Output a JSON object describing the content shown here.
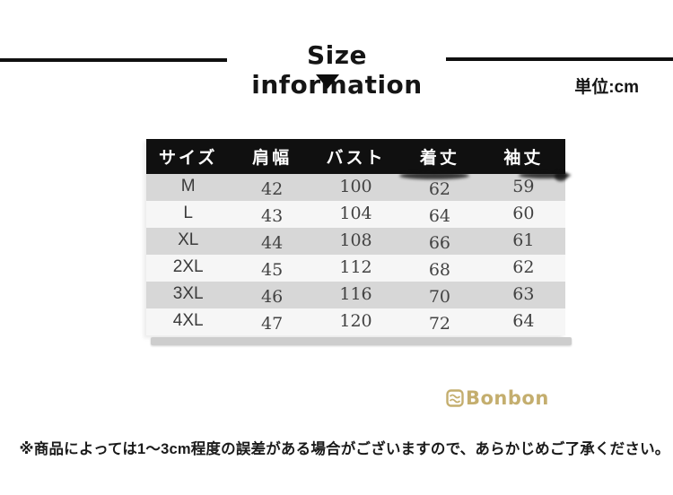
{
  "header": {
    "title": "Size information",
    "unit_label": "単位:cm"
  },
  "size_table": {
    "headers": [
      "サイズ",
      "肩幅",
      "バスト",
      "着丈",
      "袖丈"
    ],
    "rows": [
      [
        "M",
        "42",
        "100",
        "62",
        "59"
      ],
      [
        "L",
        "43",
        "104",
        "64",
        "60"
      ],
      [
        "XL",
        "44",
        "108",
        "66",
        "61"
      ],
      [
        "2XL",
        "45",
        "112",
        "68",
        "62"
      ],
      [
        "3XL",
        "46",
        "116",
        "70",
        "63"
      ],
      [
        "4XL",
        "47",
        "120",
        "72",
        "64"
      ]
    ]
  },
  "brand": {
    "name": "Bonbon"
  },
  "footer": {
    "note": "※商品によっては1〜3cm程度の誤差がある場合がございますので、あらかじめご了承ください。"
  },
  "colors": {
    "header_bg": "#101010",
    "row_alt": "#d7d7d7",
    "row_base": "#f6f6f6",
    "accent_gold": "#c4ae6e"
  }
}
